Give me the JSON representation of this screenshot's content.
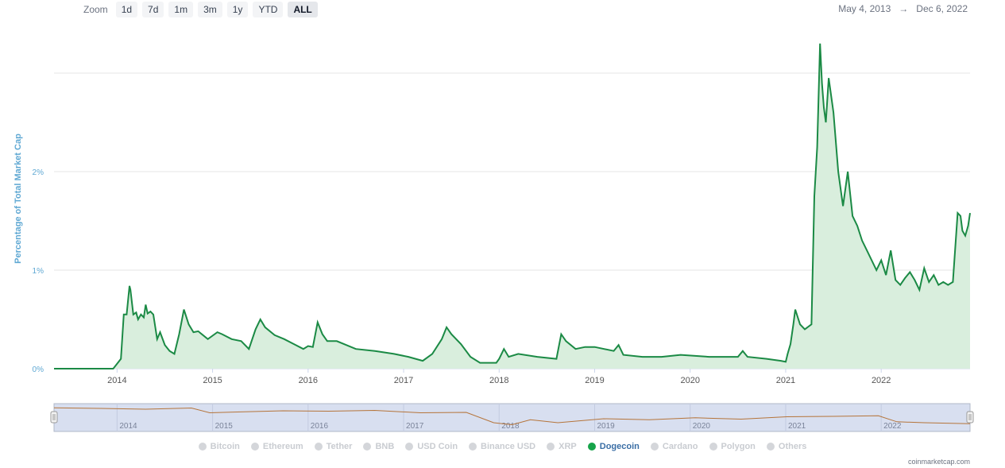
{
  "toolbar": {
    "zoom_label": "Zoom",
    "buttons": [
      "1d",
      "7d",
      "1m",
      "3m",
      "1y",
      "YTD",
      "ALL"
    ],
    "active": "ALL"
  },
  "range": {
    "from": "May 4, 2013",
    "arrow": "→",
    "to": "Dec 6, 2022"
  },
  "legend": [
    {
      "label": "Bitcoin",
      "active": false
    },
    {
      "label": "Ethereum",
      "active": false
    },
    {
      "label": "Tether",
      "active": false
    },
    {
      "label": "BNB",
      "active": false
    },
    {
      "label": "USD Coin",
      "active": false
    },
    {
      "label": "Binance USD",
      "active": false
    },
    {
      "label": "XRP",
      "active": false
    },
    {
      "label": "Dogecoin",
      "active": true
    },
    {
      "label": "Cardano",
      "active": false
    },
    {
      "label": "Polygon",
      "active": false
    },
    {
      "label": "Others",
      "active": false
    }
  ],
  "credit": "coinmarketcap.com",
  "colors": {
    "line": "#1b8a45",
    "fill": "#d9eedd",
    "navigator_bg": "#d8dff0",
    "navigator_line": "#b5743a",
    "axis_label": "#5fa8d3"
  },
  "chart_data": {
    "type": "area",
    "title": "",
    "xlabel": "",
    "ylabel": "Percentage of Total Market Cap",
    "yticks": [
      "0%",
      "1%",
      "2%"
    ],
    "xticks": [
      "2014",
      "2015",
      "2016",
      "2017",
      "2018",
      "2019",
      "2020",
      "2021",
      "2022"
    ],
    "xlim": [
      2013.34,
      2022.93
    ],
    "ylim": [
      0,
      3
    ],
    "grid": true,
    "series": [
      {
        "name": "Dogecoin",
        "x": [
          2013.34,
          2013.96,
          2014.0,
          2014.04,
          2014.07,
          2014.1,
          2014.13,
          2014.14,
          2014.17,
          2014.2,
          2014.22,
          2014.25,
          2014.28,
          2014.3,
          2014.32,
          2014.35,
          2014.38,
          2014.42,
          2014.45,
          2014.5,
          2014.55,
          2014.6,
          2014.65,
          2014.7,
          2014.75,
          2014.8,
          2014.85,
          2014.95,
          2015.05,
          2015.1,
          2015.2,
          2015.3,
          2015.38,
          2015.45,
          2015.5,
          2015.55,
          2015.65,
          2015.75,
          2015.85,
          2015.95,
          2016.0,
          2016.05,
          2016.1,
          2016.15,
          2016.2,
          2016.3,
          2016.5,
          2016.7,
          2016.9,
          2017.05,
          2017.2,
          2017.3,
          2017.4,
          2017.45,
          2017.5,
          2017.6,
          2017.7,
          2017.8,
          2017.9,
          2017.97,
          2018.0,
          2018.05,
          2018.1,
          2018.2,
          2018.4,
          2018.6,
          2018.65,
          2018.7,
          2018.8,
          2018.9,
          2019.0,
          2019.2,
          2019.25,
          2019.3,
          2019.5,
          2019.7,
          2019.9,
          2020.2,
          2020.5,
          2020.55,
          2020.6,
          2020.8,
          2020.95,
          2021.0,
          2021.02,
          2021.05,
          2021.08,
          2021.1,
          2021.15,
          2021.2,
          2021.27,
          2021.3,
          2021.33,
          2021.36,
          2021.38,
          2021.4,
          2021.42,
          2021.45,
          2021.5,
          2021.55,
          2021.6,
          2021.65,
          2021.7,
          2021.75,
          2021.8,
          2021.85,
          2021.95,
          2022.0,
          2022.05,
          2022.1,
          2022.15,
          2022.2,
          2022.25,
          2022.3,
          2022.35,
          2022.4,
          2022.45,
          2022.5,
          2022.55,
          2022.6,
          2022.65,
          2022.7,
          2022.75,
          2022.8,
          2022.83,
          2022.85,
          2022.88,
          2022.91,
          2022.93
        ],
        "values": [
          0.0,
          0.0,
          0.05,
          0.1,
          0.55,
          0.55,
          0.84,
          0.8,
          0.55,
          0.57,
          0.5,
          0.55,
          0.52,
          0.65,
          0.56,
          0.58,
          0.55,
          0.3,
          0.37,
          0.24,
          0.18,
          0.15,
          0.35,
          0.6,
          0.45,
          0.37,
          0.38,
          0.3,
          0.37,
          0.35,
          0.3,
          0.28,
          0.2,
          0.4,
          0.5,
          0.42,
          0.34,
          0.3,
          0.25,
          0.2,
          0.23,
          0.22,
          0.47,
          0.35,
          0.28,
          0.28,
          0.2,
          0.18,
          0.15,
          0.12,
          0.08,
          0.15,
          0.3,
          0.42,
          0.35,
          0.25,
          0.12,
          0.06,
          0.06,
          0.06,
          0.1,
          0.2,
          0.12,
          0.15,
          0.12,
          0.1,
          0.35,
          0.28,
          0.2,
          0.22,
          0.22,
          0.18,
          0.24,
          0.14,
          0.12,
          0.12,
          0.14,
          0.12,
          0.12,
          0.18,
          0.12,
          0.1,
          0.08,
          0.07,
          0.15,
          0.25,
          0.45,
          0.6,
          0.45,
          0.4,
          0.45,
          1.75,
          2.25,
          3.3,
          2.9,
          2.65,
          2.5,
          2.95,
          2.6,
          2.0,
          1.65,
          2.0,
          1.55,
          1.45,
          1.3,
          1.2,
          1.0,
          1.1,
          0.95,
          1.2,
          0.9,
          0.85,
          0.92,
          0.98,
          0.9,
          0.8,
          1.02,
          0.88,
          0.95,
          0.85,
          0.88,
          0.85,
          0.88,
          1.58,
          1.55,
          1.4,
          1.35,
          1.45,
          1.58
        ]
      }
    ]
  }
}
